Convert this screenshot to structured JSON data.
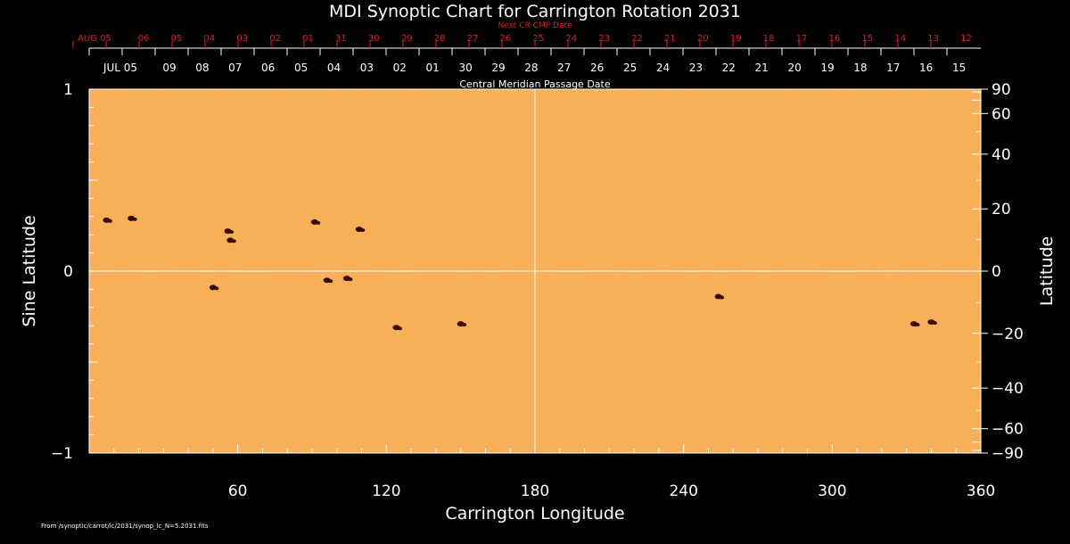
{
  "chart_data": {
    "type": "heatmap",
    "title": "MDI Synoptic Chart for Carrington Rotation 2031",
    "xlabel": "Carrington Longitude",
    "ylabel_left": "Sine Latitude",
    "ylabel_right": "Latitude",
    "xlim": [
      0,
      360
    ],
    "ylim": [
      -1,
      1
    ],
    "x_ticks": [
      "60",
      "120",
      "180",
      "240",
      "300",
      "360"
    ],
    "y_ticks_left": [
      "1",
      "0",
      "−1"
    ],
    "y_ticks_right": [
      "90",
      "60",
      "40",
      "20",
      "0",
      "−20",
      "−40",
      "−60",
      "−90"
    ],
    "top_axis_label": "Central Meridian Passage Date",
    "top_dates": [
      "JUL 05",
      "09",
      "08",
      "07",
      "06",
      "05",
      "04",
      "03",
      "02",
      "01",
      "30",
      "29",
      "28",
      "27",
      "26",
      "25",
      "24",
      "23",
      "22",
      "21",
      "20",
      "19",
      "18",
      "17",
      "16",
      "15"
    ],
    "next_cr_label": "Next CR CMP Date",
    "next_cr_dates": [
      "AUG 05",
      "06",
      "05",
      "04",
      "03",
      "02",
      "01",
      "31",
      "30",
      "29",
      "28",
      "27",
      "26",
      "25",
      "24",
      "23",
      "22",
      "21",
      "20",
      "19",
      "18",
      "17",
      "16",
      "15",
      "14",
      "13",
      "12"
    ],
    "footer_note": "From /synoptic/carrot/lc/2031/synop_lc_N=5.2031.fits",
    "colors": {
      "background_field": "#f7a64a",
      "spot": "#3a0a00",
      "axis": "#ffffff",
      "next_cr": "#e02020"
    },
    "features": [
      {
        "lon": 7,
        "sinlat": 0.28
      },
      {
        "lon": 17,
        "sinlat": 0.29
      },
      {
        "lon": 56,
        "sinlat": 0.22
      },
      {
        "lon": 57,
        "sinlat": 0.17
      },
      {
        "lon": 50,
        "sinlat": -0.09
      },
      {
        "lon": 96,
        "sinlat": -0.05
      },
      {
        "lon": 104,
        "sinlat": -0.04
      },
      {
        "lon": 109,
        "sinlat": 0.23
      },
      {
        "lon": 91,
        "sinlat": 0.27
      },
      {
        "lon": 124,
        "sinlat": -0.31
      },
      {
        "lon": 150,
        "sinlat": -0.29
      },
      {
        "lon": 254,
        "sinlat": -0.14
      },
      {
        "lon": 333,
        "sinlat": -0.29
      },
      {
        "lon": 340,
        "sinlat": -0.28
      }
    ]
  }
}
